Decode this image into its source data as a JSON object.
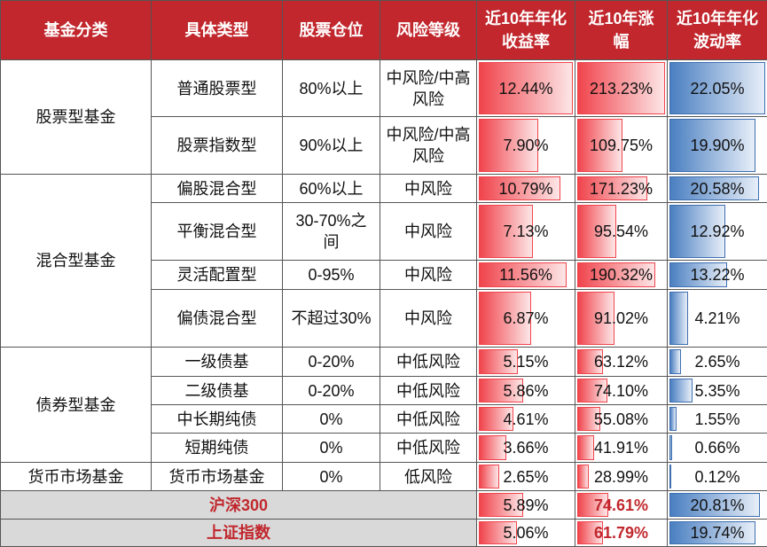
{
  "header": [
    "基金分类",
    "具体类型",
    "股票仓位",
    "风险等级",
    "近10年年化收益率",
    "近10年涨幅",
    "近10年年化波动率"
  ],
  "groups": [
    {
      "name": "股票型基金",
      "rows": [
        [
          "普通股票型",
          "80%以上",
          "中风险/中高风险",
          "12.44%",
          "213.23%",
          "22.05%"
        ],
        [
          "股票指数型",
          "90%以上",
          "中风险/中高风险",
          "7.90%",
          "109.75%",
          "19.90%"
        ]
      ]
    },
    {
      "name": "混合型基金",
      "rows": [
        [
          "偏股混合型",
          "60%以上",
          "中风险",
          "10.79%",
          "171.23%",
          "20.58%"
        ],
        [
          "平衡混合型",
          "30-70%之间",
          "中风险",
          "7.13%",
          "95.54%",
          "12.92%"
        ],
        [
          "灵活配置型",
          "0-95%",
          "中风险",
          "11.56%",
          "190.32%",
          "13.22%"
        ],
        [
          "偏债混合型",
          "不超过30%",
          "中风险",
          "6.87%",
          "91.02%",
          "4.21%"
        ]
      ]
    },
    {
      "name": "债券型基金",
      "rows": [
        [
          "一级债基",
          "0-20%",
          "中低风险",
          "5.15%",
          "63.12%",
          "2.65%"
        ],
        [
          "二级债基",
          "0-20%",
          "中低风险",
          "5.86%",
          "74.10%",
          "5.35%"
        ],
        [
          "中长期纯债",
          "0%",
          "中低风险",
          "4.61%",
          "55.08%",
          "1.55%"
        ],
        [
          "短期纯债",
          "0%",
          "中低风险",
          "3.66%",
          "41.91%",
          "0.66%"
        ]
      ]
    },
    {
      "name": "货币市场基金",
      "rows": [
        [
          "货币市场基金",
          "0%",
          "低风险",
          "2.65%",
          "28.99%",
          "0.12%"
        ]
      ]
    }
  ],
  "index_rows": [
    {
      "name": "沪深300",
      "values": [
        "5.89%",
        "74.61%",
        "20.81%"
      ]
    },
    {
      "name": "上证指数",
      "values": [
        "5.06%",
        "61.79%",
        "19.74%"
      ]
    }
  ]
}
